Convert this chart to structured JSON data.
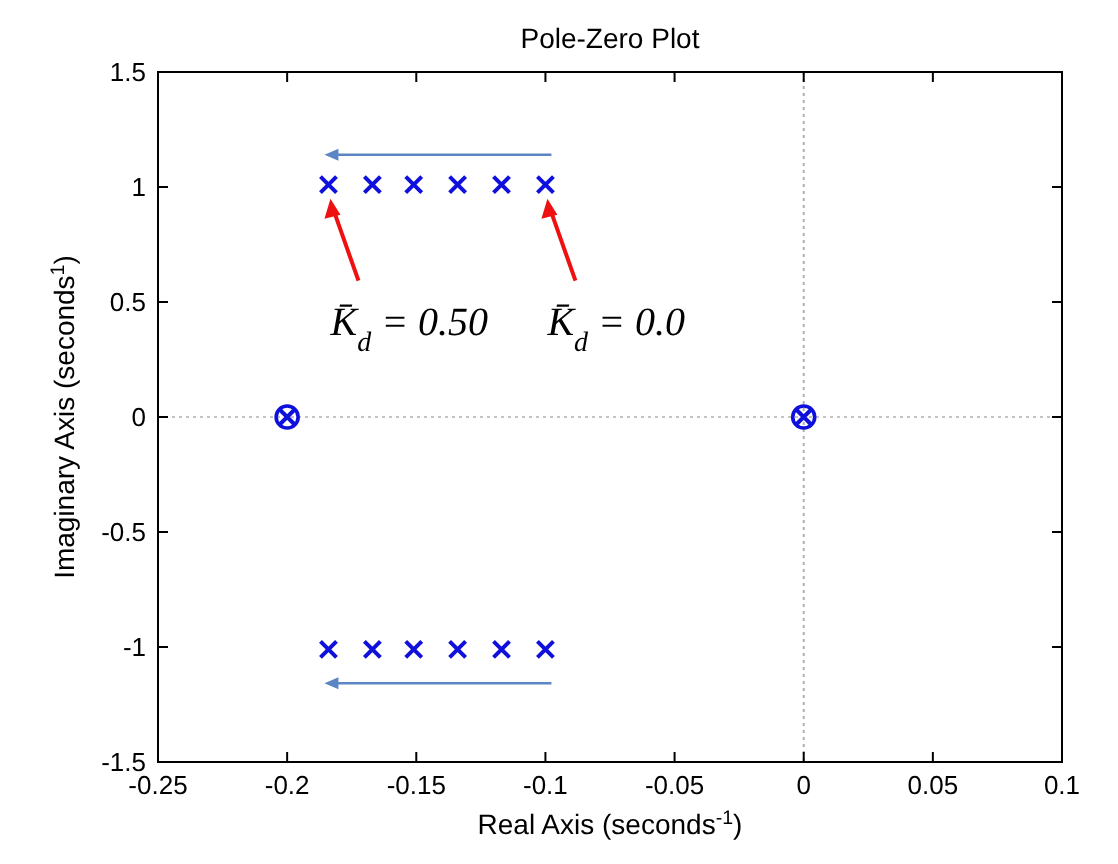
{
  "chart_data": {
    "type": "scatter",
    "title": "Pole-Zero Plot",
    "xlabel": "Real Axis  (seconds$^{-1}$)",
    "ylabel": "Imaginary Axis  (seconds$^{1}$)",
    "xlim": [
      -0.25,
      0.1
    ],
    "xticks": [
      -0.25,
      -0.2,
      -0.15,
      -0.1,
      -0.05,
      0,
      0.05,
      0.1
    ],
    "ylim": [
      -1.5,
      1.5
    ],
    "yticks": [
      -1.5,
      -1,
      -0.5,
      0,
      0.5,
      1,
      1.5
    ],
    "grid": false,
    "series": [
      {
        "color": "#1010dd",
        "marker": "circle",
        "x": [
          -0.2,
          0
        ],
        "values": [
          0,
          0
        ]
      },
      {
        "color": "#1010dd",
        "marker": "cross",
        "x": [
          -0.184,
          -0.167,
          -0.151,
          -0.134,
          -0.117,
          -0.1,
          -0.184,
          -0.167,
          -0.151,
          -0.134,
          -0.117,
          -0.1,
          -0.2,
          0
        ],
        "values": [
          1.01,
          1.01,
          1.01,
          1.01,
          1.01,
          1.01,
          -1.01,
          -1.01,
          -1.01,
          -1.01,
          -1.01,
          -1.01,
          0,
          0
        ]
      }
    ],
    "ref_lines": [
      {
        "axis": "x",
        "value": 0,
        "color": "#b0b0b0",
        "line_style": "dotted"
      },
      {
        "axis": "y",
        "value": 0,
        "color": "#c4c4c4",
        "line_style": "dotted"
      }
    ],
    "annotations": [
      {
        "text": "K̄$_{d}$ = 0.50",
        "x": -0.184,
        "y": 1.01
      },
      {
        "text": "K̄$_{d}$ = 0.0",
        "x": -0.1,
        "y": 1.01
      }
    ]
  }
}
